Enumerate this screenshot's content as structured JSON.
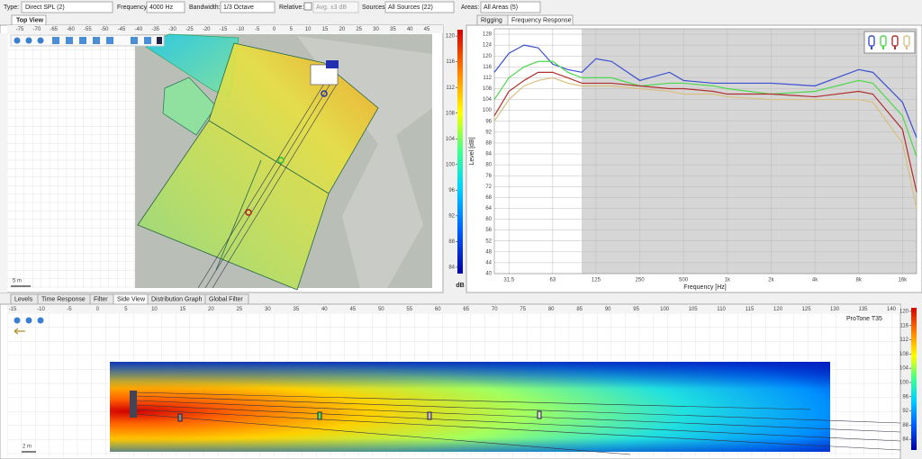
{
  "toolbar": {
    "type_label": "Type:",
    "type_value": "Direct SPL (2)",
    "frequency_label": "Frequency:",
    "frequency_value": "4000 Hz",
    "bandwidth_label": "Bandwidth:",
    "bandwidth_value": "1/3 Octave",
    "relative_label": "Relative:",
    "avg_label": "Avg. ±3 dB",
    "sources_label": "Sources:",
    "sources_value": "All Sources (22)",
    "areas_label": "Areas:",
    "areas_value": "All Areas (5)"
  },
  "top_view": {
    "tab": "Top View",
    "scale": "5 m",
    "ruler": [
      -75,
      -70,
      -65,
      -60,
      -55,
      -50,
      -45,
      -40,
      -35,
      -30,
      -25,
      -20,
      -15,
      -10,
      -5,
      0,
      5,
      10,
      15,
      20,
      25,
      30,
      35,
      40,
      45
    ],
    "colorbar": {
      "unit": "dB",
      "lim": [
        83,
        121
      ],
      "ticks": [
        84,
        88,
        92,
        96,
        100,
        104,
        108,
        112,
        116,
        120
      ]
    }
  },
  "right_tabs": [
    "Rigging",
    "Frequency Response"
  ],
  "chart_data": {
    "type": "line",
    "xlabel": "Frequency [Hz]",
    "ylabel": "Level [dB]",
    "log_x": true,
    "grid": true,
    "x": [
      25,
      31.5,
      40,
      50,
      63,
      80,
      100,
      125,
      160,
      250,
      400,
      500,
      800,
      1000,
      2000,
      4000,
      8000,
      10000,
      16000,
      20000
    ],
    "xlim": [
      25,
      20000
    ],
    "xticks": [
      31.5,
      63,
      125,
      250,
      500,
      {
        "value": 1000,
        "label": "1k"
      },
      {
        "value": 2000,
        "label": "2k"
      },
      {
        "value": 4000,
        "label": "4k"
      },
      {
        "value": 8000,
        "label": "8k"
      },
      {
        "value": 16000,
        "label": "16k"
      }
    ],
    "ylim": [
      40,
      130
    ],
    "yticks": [
      40,
      44,
      48,
      52,
      56,
      60,
      64,
      68,
      72,
      76,
      80,
      84,
      88,
      92,
      96,
      100,
      104,
      108,
      112,
      116,
      120,
      124,
      128
    ],
    "series": [
      {
        "color": "#3a4fd0",
        "values": [
          114,
          121,
          124,
          123,
          117,
          115,
          114,
          119,
          118,
          111,
          114,
          111,
          110,
          110,
          110,
          109,
          115,
          114,
          103,
          90
        ]
      },
      {
        "color": "#4ed84e",
        "values": [
          104,
          112,
          116,
          118,
          118,
          114,
          112,
          112,
          112,
          109,
          110,
          110,
          109,
          108,
          106,
          107,
          111,
          110,
          98,
          83
        ]
      },
      {
        "color": "#b03030",
        "values": [
          98,
          107,
          111,
          114,
          114,
          112,
          110,
          110,
          110,
          109,
          108,
          108,
          107,
          106,
          106,
          105,
          107,
          106,
          93,
          70
        ]
      },
      {
        "color": "#d8c080",
        "values": [
          96,
          104,
          109,
          111,
          112,
          110,
          109,
          109,
          109,
          108,
          107,
          106,
          106,
          105,
          104,
          104,
          104,
          103,
          88,
          64
        ]
      }
    ]
  },
  "bottom_tabs": [
    "Levels",
    "Time Response",
    "Filter",
    "Side View",
    "Distribution Graph",
    "Global Filter"
  ],
  "side_view": {
    "source": "ProTone T35",
    "scale": "2 m",
    "ruler": [
      -15,
      -10,
      -5,
      0,
      5,
      10,
      15,
      20,
      25,
      30,
      35,
      40,
      45,
      50,
      55,
      60,
      65,
      70,
      75,
      80,
      85,
      90,
      95,
      100,
      105,
      110,
      115,
      120,
      125,
      130,
      135,
      140
    ],
    "colorbar": {
      "unit": "dB",
      "lim": [
        81,
        121
      ],
      "ticks": [
        84,
        88,
        92,
        96,
        100,
        104,
        108,
        112,
        116,
        120
      ]
    }
  }
}
